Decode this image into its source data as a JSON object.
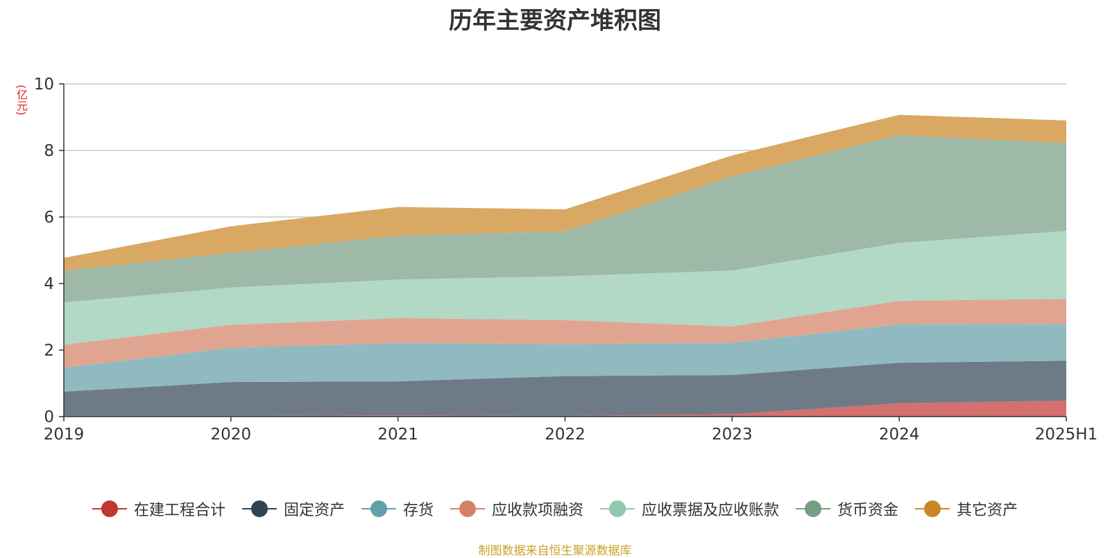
{
  "chart_data": {
    "type": "area",
    "title": "历年主要资产堆积图",
    "unit_label": "(亿元)",
    "source_note": "制图数据来自恒生聚源数据库",
    "categories": [
      "2019",
      "2020",
      "2021",
      "2022",
      "2023",
      "2024",
      "2025H1"
    ],
    "ylim": [
      0,
      10
    ],
    "y_ticks": [
      0,
      2,
      4,
      6,
      8,
      10
    ],
    "grid": true,
    "stacked": true,
    "legend_position": "bottom",
    "series": [
      {
        "name": "在建工程合计",
        "color": "#c23531",
        "fill": "#d4706e",
        "values": [
          0.02,
          0.02,
          0.04,
          0.02,
          0.07,
          0.4,
          0.48
        ]
      },
      {
        "name": "固定资产",
        "color": "#2f4554",
        "fill": "#6e7b87",
        "values": [
          0.73,
          1.02,
          1.02,
          1.2,
          1.18,
          1.22,
          1.2
        ]
      },
      {
        "name": "存货",
        "color": "#61a0a8",
        "fill": "#90bac0",
        "values": [
          0.72,
          1.03,
          1.15,
          0.96,
          0.97,
          1.15,
          1.11
        ]
      },
      {
        "name": "应收款项融资",
        "color": "#d48265",
        "fill": "#e0a591",
        "values": [
          0.69,
          0.69,
          0.75,
          0.72,
          0.49,
          0.71,
          0.75
        ]
      },
      {
        "name": "应收票据及应收账款",
        "color": "#91c7ae",
        "fill": "#b2d8c6",
        "values": [
          1.27,
          1.12,
          1.16,
          1.32,
          1.68,
          1.74,
          2.04
        ]
      },
      {
        "name": "货币资金",
        "color": "#749f83",
        "fill": "#9eb9a7",
        "values": [
          0.96,
          1.04,
          1.32,
          1.35,
          2.83,
          3.24,
          2.64
        ]
      },
      {
        "name": "其它资产",
        "color": "#ca8622",
        "fill": "#d9a862",
        "values": [
          0.38,
          0.8,
          0.86,
          0.66,
          0.63,
          0.61,
          0.68
        ]
      }
    ]
  }
}
